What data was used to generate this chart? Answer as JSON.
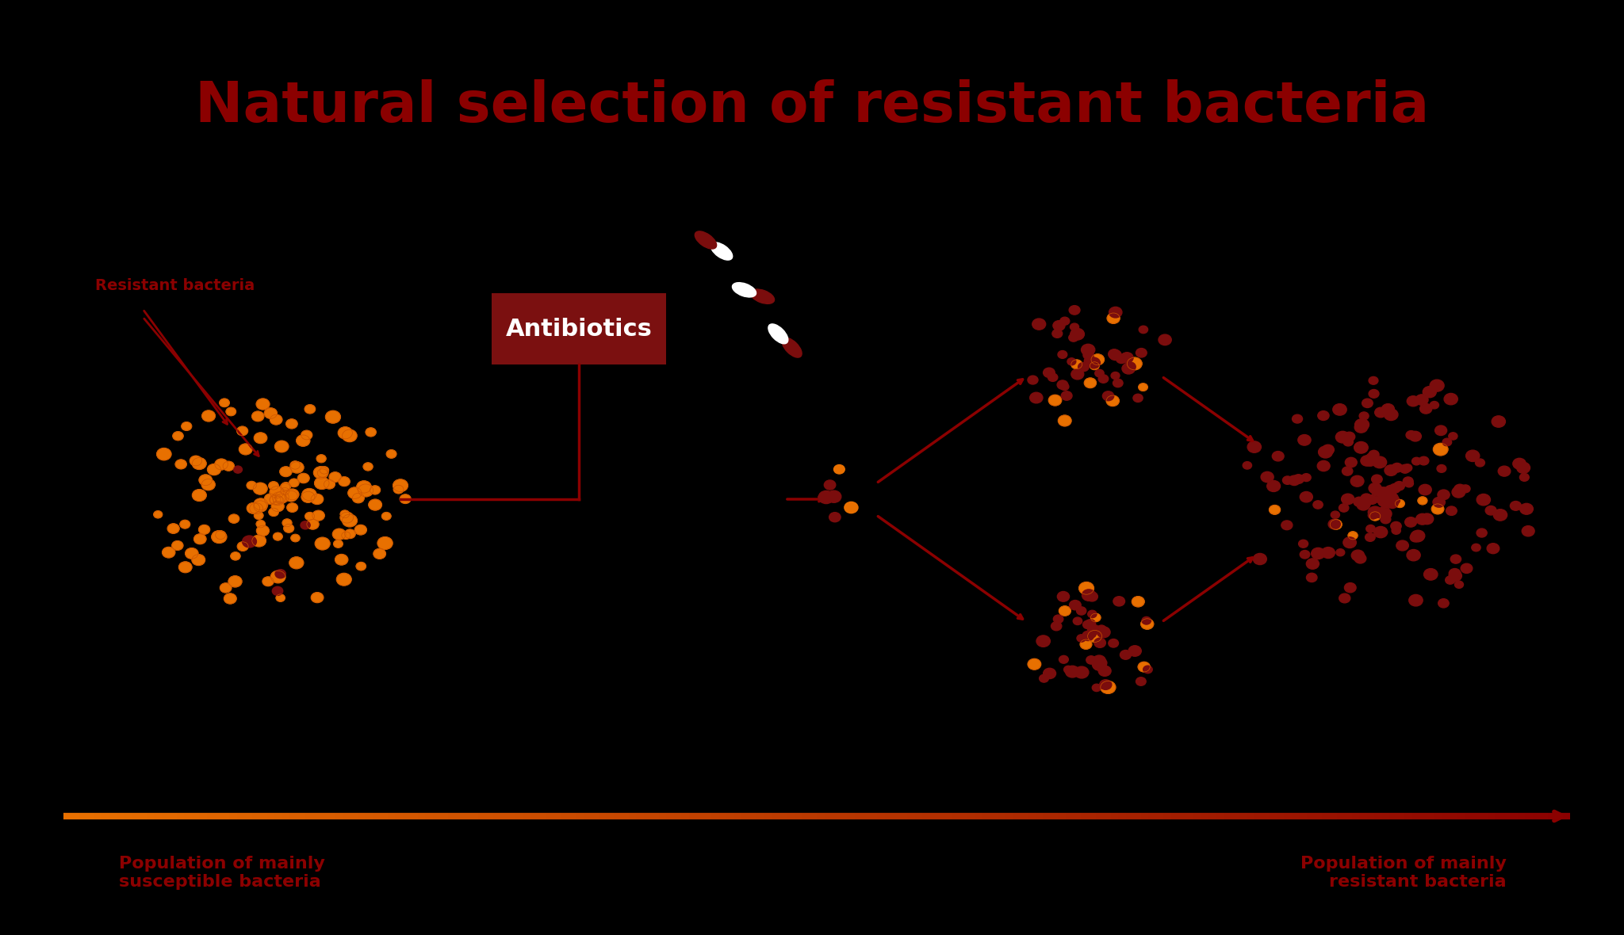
{
  "title": "Natural selection of resistant bacteria",
  "title_color": "#8B0000",
  "title_fontsize": 52,
  "bg_color": "#000000",
  "antibiotic_box_color": "#7B1010",
  "antibiotic_text": "Antibiotics",
  "antibiotic_text_color": "#FFFFFF",
  "label_resistant": "Resistant bacteria",
  "label_susceptible": "Population of mainly\nsusceptible bacteria",
  "label_resistant_pop": "Population of mainly\nresistant bacteria",
  "label_color": "#8B0000",
  "orange_bacteria_color": "#E87000",
  "orange_bacteria_edge": "#CC5500",
  "dark_bacteria_color": "#7B0D0D",
  "arrow_color": "#8B0000",
  "gradient_arrow_start": "#E87000",
  "gradient_arrow_end": "#8B0000"
}
